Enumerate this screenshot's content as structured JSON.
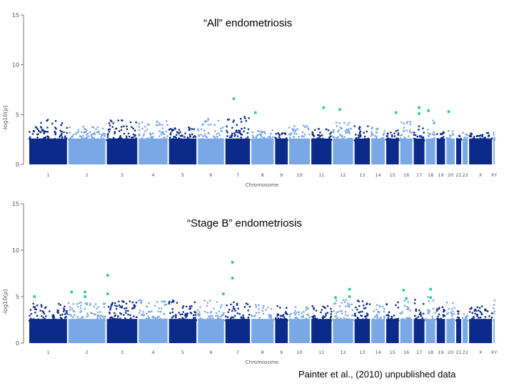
{
  "chart_data": [
    {
      "type": "scatter",
      "title": "“All” endometriosis",
      "xlabel": "Chromosome",
      "ylabel": "-log10(p)",
      "ylim": [
        0,
        15
      ],
      "y_ticks": [
        "0",
        "5",
        "10",
        "15"
      ],
      "grid": false,
      "chromosomes": [
        "1",
        "2",
        "3",
        "4",
        "5",
        "6",
        "7",
        "8",
        "9",
        "10",
        "11",
        "12",
        "13",
        "14",
        "15",
        "16",
        "17",
        "18",
        "19",
        "20",
        "21",
        "22",
        "X",
        "XY"
      ],
      "colors": {
        "dark": "#0b2a8a",
        "light": "#7aa8e6",
        "highlight": "#2fc79a"
      },
      "baseline_peaks": [
        4.5,
        3.8,
        4.6,
        4.4,
        3.8,
        4.7,
        4.8,
        3.5,
        3.2,
        4.1,
        3.6,
        4.2,
        3.9,
        3.9,
        3.5,
        4.4,
        4.0,
        4.5,
        3.4,
        3.4,
        3.0,
        3.2,
        3.2,
        4.8
      ],
      "highlighted_snps": [
        {
          "chromosome": "7",
          "pos": 0.35,
          "p": 6.6
        },
        {
          "chromosome": "8",
          "pos": 0.2,
          "p": 5.2
        },
        {
          "chromosome": "11",
          "pos": 0.6,
          "p": 5.7
        },
        {
          "chromosome": "12",
          "pos": 0.35,
          "p": 5.5
        },
        {
          "chromosome": "15",
          "pos": 0.75,
          "p": 5.2
        },
        {
          "chromosome": "17",
          "pos": 0.5,
          "p": 5.7
        },
        {
          "chromosome": "17",
          "pos": 0.5,
          "p": 5.1
        },
        {
          "chromosome": "18",
          "pos": 0.3,
          "p": 5.4
        },
        {
          "chromosome": "20",
          "pos": 0.3,
          "p": 5.3
        }
      ]
    },
    {
      "type": "scatter",
      "title": "“Stage B” endometriosis",
      "xlabel": "Chromosome",
      "ylabel": "-log10(p)",
      "ylim": [
        0,
        15
      ],
      "y_ticks": [
        "0",
        "5",
        "10",
        "15"
      ],
      "grid": false,
      "chromosomes": [
        "1",
        "2",
        "3",
        "4",
        "5",
        "6",
        "7",
        "8",
        "9",
        "10",
        "11",
        "12",
        "13",
        "14",
        "15",
        "16",
        "17",
        "18",
        "19",
        "20",
        "21",
        "22",
        "X",
        "XY"
      ],
      "colors": {
        "dark": "#0b2a8a",
        "light": "#7aa8e6",
        "highlight": "#2fc79a"
      },
      "baseline_peaks": [
        4.3,
        4.4,
        4.6,
        4.7,
        4.6,
        4.7,
        4.5,
        4.2,
        4.0,
        4.0,
        4.0,
        4.8,
        4.6,
        4.3,
        4.5,
        4.8,
        4.8,
        5.0,
        3.9,
        4.7,
        3.5,
        3.2,
        4.0,
        4.6
      ],
      "highlighted_snps": [
        {
          "chromosome": "1",
          "pos": 0.15,
          "p": 5.0
        },
        {
          "chromosome": "2",
          "pos": 0.1,
          "p": 5.5
        },
        {
          "chromosome": "2",
          "pos": 0.45,
          "p": 5.5
        },
        {
          "chromosome": "2",
          "pos": 0.45,
          "p": 5.0
        },
        {
          "chromosome": "3",
          "pos": 0.05,
          "p": 7.3
        },
        {
          "chromosome": "3",
          "pos": 0.05,
          "p": 5.3
        },
        {
          "chromosome": "6",
          "pos": 0.95,
          "p": 5.3
        },
        {
          "chromosome": "7",
          "pos": 0.3,
          "p": 8.7
        },
        {
          "chromosome": "7",
          "pos": 0.3,
          "p": 7.0
        },
        {
          "chromosome": "12",
          "pos": 0.15,
          "p": 4.9
        },
        {
          "chromosome": "12",
          "pos": 0.8,
          "p": 5.8
        },
        {
          "chromosome": "12",
          "pos": 0.8,
          "p": 5.0
        },
        {
          "chromosome": "16",
          "pos": 0.3,
          "p": 5.7
        },
        {
          "chromosome": "16",
          "pos": 0.5,
          "p": 4.8
        },
        {
          "chromosome": "18",
          "pos": 0.5,
          "p": 5.8
        },
        {
          "chromosome": "18",
          "pos": 0.5,
          "p": 4.9
        }
      ]
    }
  ],
  "footer": {
    "credit": "Painter et al., (2010) unpublished data"
  }
}
